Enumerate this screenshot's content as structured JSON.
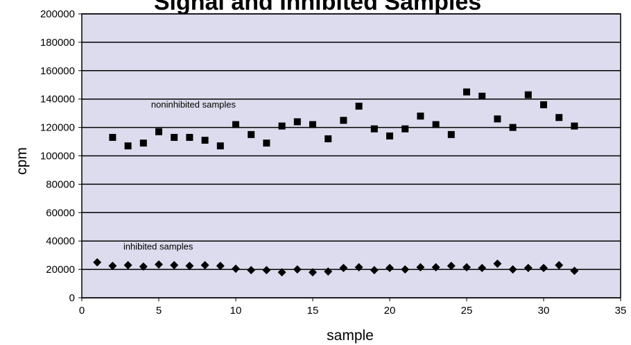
{
  "chart_data": {
    "type": "scatter",
    "title": "Signal and Inhibited Samples",
    "xlabel": "sample",
    "ylabel": "cpm",
    "xlim": [
      0,
      35
    ],
    "ylim": [
      0,
      200000
    ],
    "xticks": [
      "0",
      "5",
      "10",
      "15",
      "20",
      "25",
      "30",
      "35"
    ],
    "yticks": [
      "0",
      "20000",
      "40000",
      "60000",
      "80000",
      "100000",
      "120000",
      "140000",
      "160000",
      "180000",
      "200000"
    ],
    "grid": "horizontal",
    "plot_background": "#dcdcee",
    "marker_color": "#000000",
    "annotations": [
      {
        "text": "noninhibited samples",
        "x": 4.5,
        "y": 134000
      },
      {
        "text": "inhibited samples",
        "x": 2.7,
        "y": 34000
      }
    ],
    "series": [
      {
        "marker": "square",
        "x": [
          2,
          3,
          4,
          5,
          6,
          7,
          8,
          9,
          10,
          11,
          12,
          13,
          14,
          15,
          16,
          17,
          18,
          19,
          20,
          21,
          22,
          23,
          24,
          25,
          26,
          27,
          28,
          29,
          30,
          31,
          32
        ],
        "y": [
          113000,
          107000,
          109000,
          117000,
          113000,
          113000,
          111000,
          107000,
          122000,
          115000,
          109000,
          121000,
          124000,
          122000,
          112000,
          125000,
          135000,
          119000,
          114000,
          119000,
          128000,
          122000,
          115000,
          145000,
          142000,
          126000,
          120000,
          143000,
          136000,
          127000,
          121000
        ]
      },
      {
        "marker": "diamond",
        "x": [
          1,
          2,
          3,
          4,
          5,
          6,
          7,
          8,
          9,
          10,
          11,
          12,
          13,
          14,
          15,
          16,
          17,
          18,
          19,
          20,
          21,
          22,
          23,
          24,
          25,
          26,
          27,
          28,
          29,
          30,
          31,
          32
        ],
        "y": [
          25000,
          22500,
          23000,
          22000,
          23500,
          23000,
          22500,
          23000,
          22500,
          20500,
          19500,
          19500,
          18000,
          20000,
          18000,
          18500,
          21000,
          21500,
          19500,
          21000,
          20000,
          21500,
          21500,
          22500,
          21500,
          21000,
          24000,
          20000,
          21000,
          21000,
          23000,
          19000
        ]
      }
    ]
  }
}
